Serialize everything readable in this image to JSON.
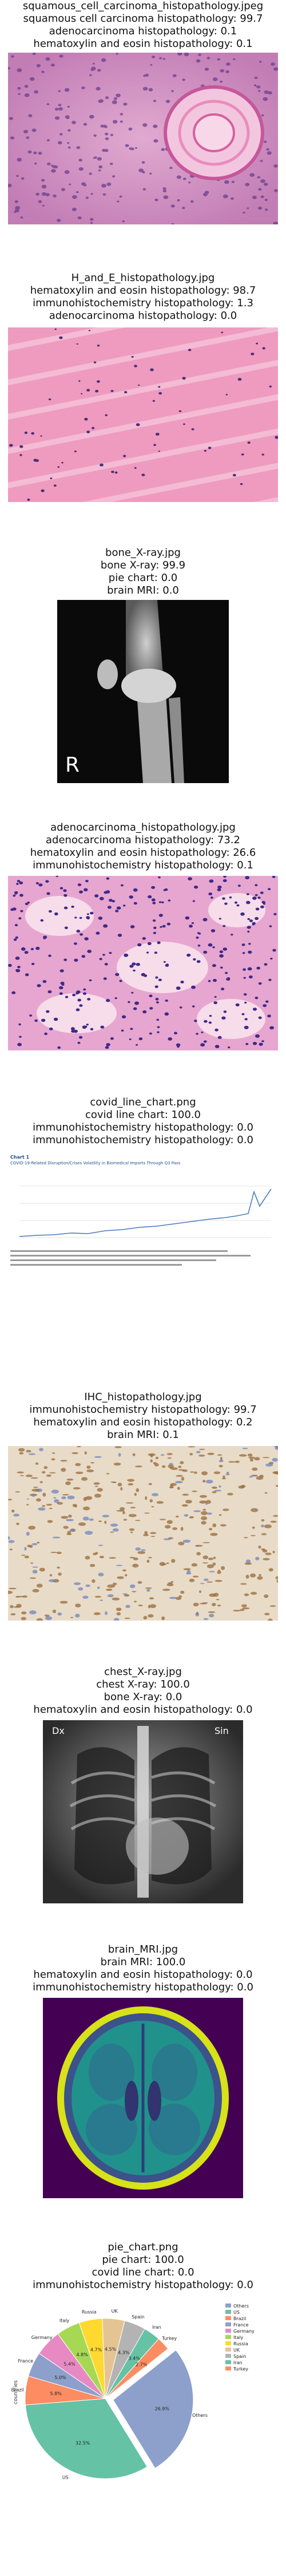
{
  "panels": [
    {
      "filename": "squamous_cell_carcinoma_histopathology.jpeg",
      "lines": [
        "squamous cell carcinoma histopathology: 99.7",
        "adenocarcinoma histopathology: 0.1",
        "hematoxylin and eosin histopathology: 0.1"
      ]
    },
    {
      "filename": "H_and_E_histopathology.jpg",
      "lines": [
        "hematoxylin and eosin histopathology: 98.7",
        "immunohistochemistry histopathology: 1.3",
        "adenocarcinoma histopathology: 0.0"
      ]
    },
    {
      "filename": "bone_X-ray.jpg",
      "lines": [
        "bone X-ray: 99.9",
        "pie chart: 0.0",
        "brain MRI: 0.0"
      ],
      "image_text": "R"
    },
    {
      "filename": "adenocarcinoma_histopathology.jpg",
      "lines": [
        "adenocarcinoma histopathology: 73.2",
        "hematoxylin and eosin histopathology: 26.6",
        "immunohistochemistry histopathology: 0.1"
      ]
    },
    {
      "filename": "covid_line_chart.png",
      "lines": [
        "covid line chart: 100.0",
        "immunohistochemistry histopathology: 0.0",
        "immunohistochemistry histopathology: 0.0"
      ],
      "inner_chart_title": "COVID-19-Related Disruption/Crises Volatility in Biomedical Imports Through Q3 Pass",
      "inner_chart_label": "Chart 1"
    },
    {
      "filename": "IHC_histopathology.jpg",
      "lines": [
        "immunohistochemistry histopathology: 99.7",
        "hematoxylin and eosin histopathology: 0.2",
        "brain MRI: 0.1"
      ]
    },
    {
      "filename": "chest_X-ray.jpg",
      "lines": [
        "chest X-ray: 100.0",
        "bone X-ray: 0.0",
        "hematoxylin and eosin histopathology: 0.0"
      ],
      "image_text_left": "Dx",
      "image_text_right": "Sin"
    },
    {
      "filename": "brain_MRI.jpg",
      "lines": [
        "brain MRI: 100.0",
        "hematoxylin and eosin histopathology: 0.0",
        "immunohistochemistry histopathology: 0.0"
      ]
    },
    {
      "filename": "pie_chart.png",
      "lines": [
        "pie chart: 100.0",
        "covid line chart: 0.0",
        "immunohistochemistry histopathology: 0.0"
      ]
    }
  ],
  "chart_data": {
    "type": "pie",
    "title": "",
    "ylabel": "countries",
    "slices": [
      {
        "label": "Others",
        "value": 26.9,
        "color": "#8da0cb"
      },
      {
        "label": "US",
        "value": 32.5,
        "color": "#66c2a5"
      },
      {
        "label": "Brazil",
        "value": 5.8,
        "color": "#fc8d62"
      },
      {
        "label": "France",
        "value": 5.0,
        "color": "#8da0cb"
      },
      {
        "label": "Germany",
        "value": 5.4,
        "color": "#e78ac3"
      },
      {
        "label": "Italy",
        "value": 4.8,
        "color": "#a6d854"
      },
      {
        "label": "Russia",
        "value": 4.7,
        "color": "#ffd92f"
      },
      {
        "label": "UK",
        "value": 4.5,
        "color": "#e5c494"
      },
      {
        "label": "Spain",
        "value": 4.3,
        "color": "#b3b3b3"
      },
      {
        "label": "Iran",
        "value": 3.4,
        "color": "#66c2a5"
      },
      {
        "label": "Turkey",
        "value": 2.7,
        "color": "#fc8d62"
      }
    ],
    "legend_position": "top-right"
  }
}
